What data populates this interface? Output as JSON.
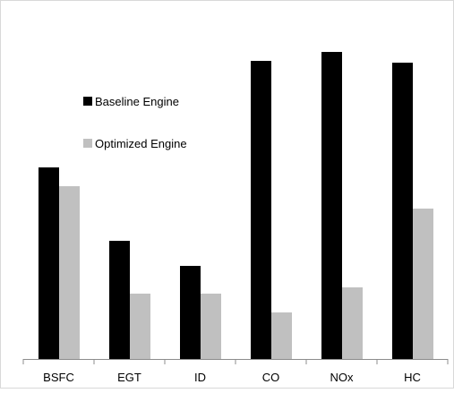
{
  "chart_data": {
    "type": "bar",
    "categories": [
      "BSFC",
      "EGT",
      "ID",
      "CO",
      "NOx",
      "HC"
    ],
    "series": [
      {
        "name": "Baseline Engine",
        "color": "#000000",
        "values": [
          214,
          132,
          104,
          333,
          343,
          331
        ]
      },
      {
        "name": "Optimized Engine",
        "color": "#c0c0c0",
        "values": [
          193,
          73,
          73,
          52,
          80,
          168
        ]
      }
    ],
    "title": "",
    "xlabel": "",
    "ylabel": "",
    "ylim": [
      0,
      360
    ],
    "legend_position": "upper-left inside plot",
    "grid": false
  }
}
